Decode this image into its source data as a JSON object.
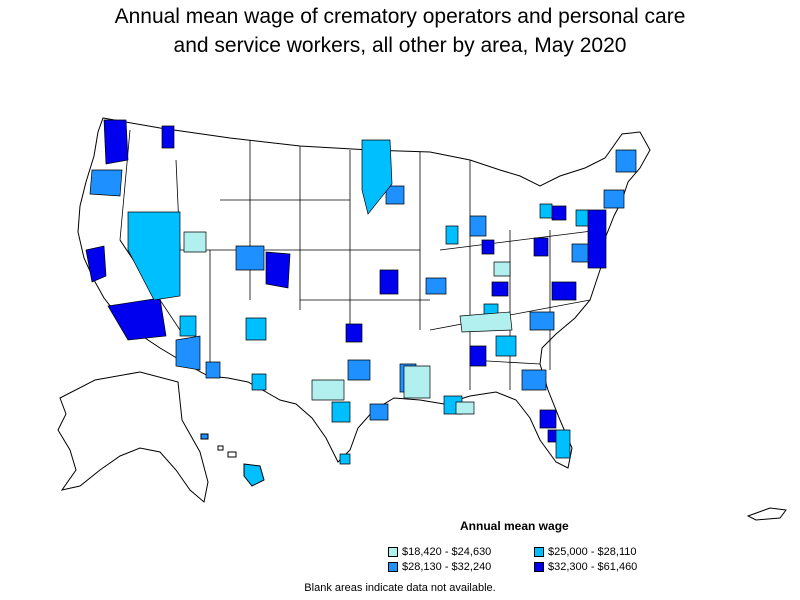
{
  "title_line1": "Annual mean wage of crematory operators and personal care",
  "title_line2": "and service workers, all other by area, May 2020",
  "legend": {
    "title": "Annual mean wage",
    "items": [
      {
        "label": "$18,420 - $24,630",
        "color": "#b2f0f0"
      },
      {
        "label": "$25,000 - $28,110",
        "color": "#00bfff"
      },
      {
        "label": "$28,130 - $32,240",
        "color": "#1e90ff"
      },
      {
        "label": "$32,300 - $61,460",
        "color": "#0000ee"
      }
    ]
  },
  "note": "Blank areas indicate data not available."
}
